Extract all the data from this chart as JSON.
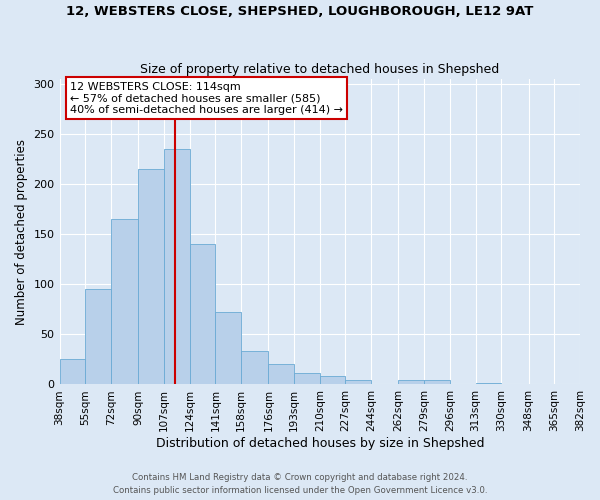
{
  "title": "12, WEBSTERS CLOSE, SHEPSHED, LOUGHBOROUGH, LE12 9AT",
  "subtitle": "Size of property relative to detached houses in Shepshed",
  "xlabel": "Distribution of detached houses by size in Shepshed",
  "ylabel": "Number of detached properties",
  "bar_values": [
    25,
    95,
    165,
    215,
    235,
    140,
    72,
    33,
    20,
    11,
    8,
    4,
    0,
    4,
    4,
    0,
    1
  ],
  "tick_labels": [
    "38sqm",
    "55sqm",
    "72sqm",
    "90sqm",
    "107sqm",
    "124sqm",
    "141sqm",
    "158sqm",
    "176sqm",
    "193sqm",
    "210sqm",
    "227sqm",
    "244sqm",
    "262sqm",
    "279sqm",
    "296sqm",
    "313sqm",
    "330sqm",
    "348sqm",
    "365sqm",
    "382sqm"
  ],
  "bar_color": "#b8d0ea",
  "bar_edge_color": "#6aaad4",
  "background_color": "#dce8f5",
  "vline_x": 114,
  "vline_color": "#cc0000",
  "annotation_title": "12 WEBSTERS CLOSE: 114sqm",
  "annotation_line1": "← 57% of detached houses are smaller (585)",
  "annotation_line2": "40% of semi-detached houses are larger (414) →",
  "annotation_box_color": "#ffffff",
  "annotation_box_edge": "#cc0000",
  "ylim": [
    0,
    305
  ],
  "yticks": [
    0,
    50,
    100,
    150,
    200,
    250,
    300
  ],
  "footer1": "Contains HM Land Registry data © Crown copyright and database right 2024.",
  "footer2": "Contains public sector information licensed under the Open Government Licence v3.0."
}
